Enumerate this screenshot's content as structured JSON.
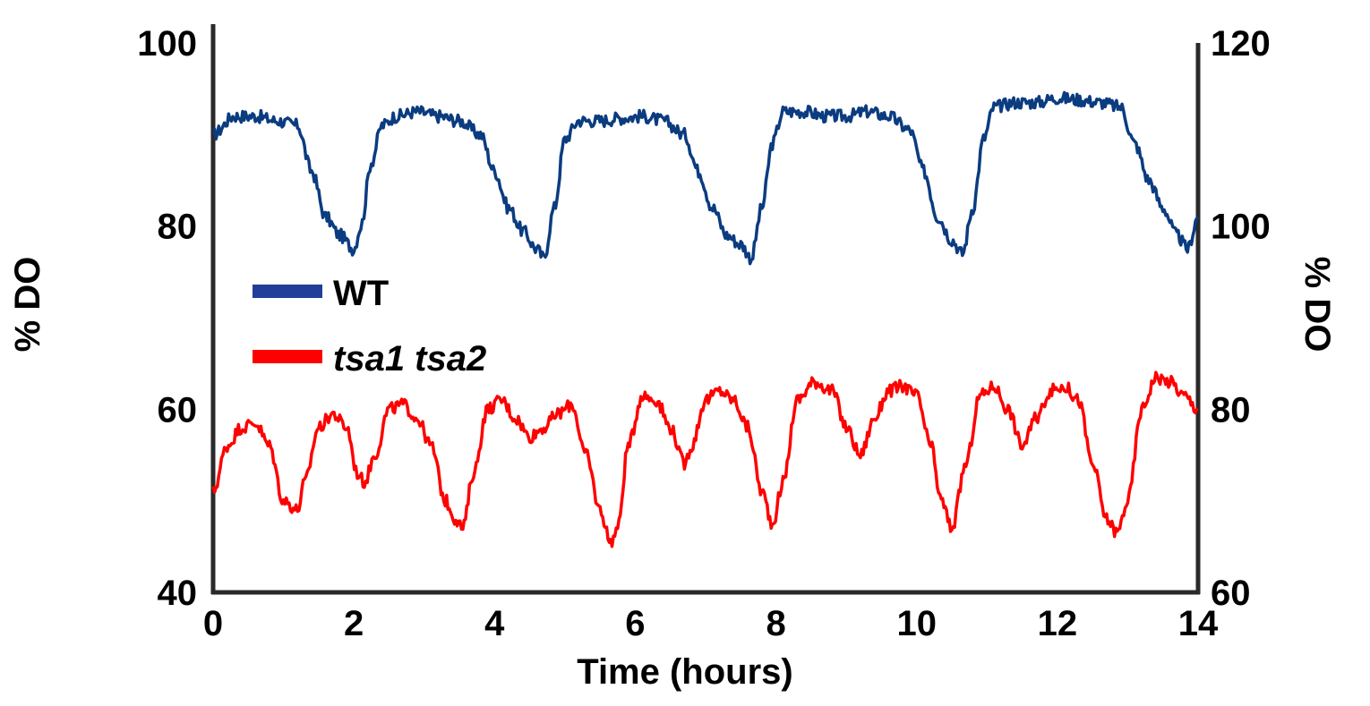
{
  "chart_data": {
    "type": "line",
    "xlabel": "Time (hours)",
    "ylabel_left": "% DO",
    "ylabel_right": "% DO",
    "xlim": [
      0,
      14
    ],
    "ylim_left": [
      40,
      100
    ],
    "ylim_right": [
      60,
      120
    ],
    "x_ticks": [
      "0",
      "2",
      "4",
      "6",
      "8",
      "10",
      "12",
      "14"
    ],
    "y_ticks_left": [
      "40",
      "60",
      "80",
      "100"
    ],
    "y_ticks_right": [
      "60",
      "80",
      "100",
      "120"
    ],
    "grid": false,
    "legend_position": "middle-left",
    "series": [
      {
        "name": "WT",
        "color": "#0b3c80",
        "legend_color": "#213f9a",
        "axis": "right",
        "x": [
          0,
          0.3,
          0.6,
          0.9,
          1.2,
          1.4,
          1.6,
          1.8,
          2.0,
          2.1,
          2.25,
          2.4,
          2.6,
          2.9,
          3.2,
          3.5,
          3.8,
          4.0,
          4.2,
          4.4,
          4.6,
          4.7,
          4.85,
          5.0,
          5.2,
          5.5,
          5.8,
          6.1,
          6.4,
          6.7,
          6.9,
          7.1,
          7.3,
          7.5,
          7.65,
          7.8,
          7.95,
          8.1,
          8.4,
          8.7,
          9.0,
          9.3,
          9.6,
          9.9,
          10.1,
          10.3,
          10.5,
          10.65,
          10.8,
          10.95,
          11.1,
          11.4,
          11.7,
          12.0,
          12.3,
          12.6,
          12.9,
          13.1,
          13.3,
          13.5,
          13.7,
          13.85,
          14.0
        ],
        "y": [
          110,
          112,
          112,
          111.5,
          111,
          106,
          101,
          99,
          97.5,
          100,
          107,
          111,
          112,
          112.5,
          112,
          111.5,
          110,
          106,
          102,
          99.5,
          97.5,
          96.5,
          102,
          109.5,
          111.5,
          111.5,
          111.8,
          112,
          111.5,
          110,
          106,
          102,
          99,
          98,
          96.5,
          102,
          109,
          112.5,
          112.5,
          112,
          112,
          112.5,
          112,
          110.5,
          106,
          101,
          98.5,
          97,
          102,
          109.5,
          113,
          113.5,
          113.5,
          114,
          113.8,
          113.5,
          113,
          109,
          105,
          102,
          99,
          97.5,
          101
        ]
      },
      {
        "name": "tsa1 tsa2",
        "color": "#ff0000",
        "legend_color": "#ff0000",
        "axis": "left",
        "x": [
          0,
          0.2,
          0.4,
          0.6,
          0.8,
          1.0,
          1.2,
          1.3,
          1.5,
          1.7,
          1.9,
          2.05,
          2.15,
          2.3,
          2.5,
          2.7,
          2.9,
          3.1,
          3.3,
          3.45,
          3.55,
          3.7,
          3.9,
          4.1,
          4.3,
          4.5,
          4.7,
          4.9,
          5.1,
          5.3,
          5.5,
          5.65,
          5.75,
          5.9,
          6.1,
          6.3,
          6.5,
          6.7,
          6.8,
          7.0,
          7.2,
          7.4,
          7.6,
          7.8,
          7.95,
          8.1,
          8.3,
          8.55,
          8.8,
          9.0,
          9.2,
          9.4,
          9.6,
          9.8,
          10.0,
          10.2,
          10.35,
          10.5,
          10.7,
          10.9,
          11.1,
          11.3,
          11.5,
          11.7,
          11.9,
          12.1,
          12.3,
          12.5,
          12.7,
          12.85,
          13.0,
          13.2,
          13.4,
          13.6,
          13.8,
          14.0
        ],
        "y": [
          51,
          56,
          58,
          58.5,
          56,
          50,
          49,
          52,
          58,
          59.5,
          58,
          53,
          52,
          55,
          60,
          60.5,
          59,
          56,
          50,
          48,
          47,
          53,
          60,
          61,
          59,
          57,
          58,
          59.5,
          60.5,
          55,
          49,
          45.5,
          47,
          56,
          61.5,
          61,
          58,
          54,
          56,
          61,
          62,
          61,
          58,
          51,
          47.5,
          52,
          61,
          63,
          62,
          58,
          55,
          59,
          62,
          62.5,
          61.5,
          56,
          50,
          47,
          54,
          61.5,
          62.5,
          60,
          56,
          59,
          62,
          62.5,
          61,
          54,
          48,
          46.5,
          50,
          60,
          63.5,
          63,
          61.5,
          60
        ]
      }
    ]
  }
}
